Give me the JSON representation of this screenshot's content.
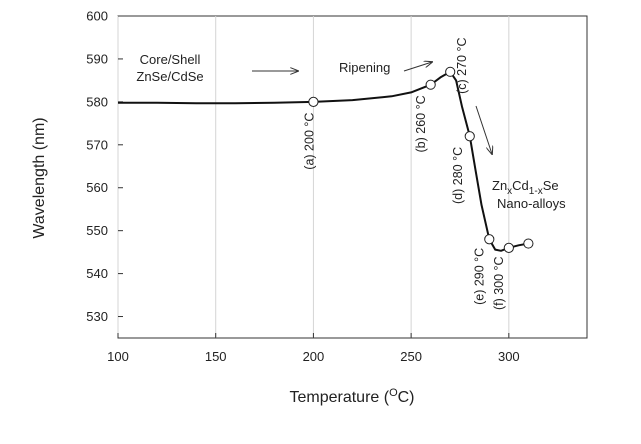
{
  "chart_data": {
    "type": "line",
    "title": "",
    "xlabel": {
      "main": "Temperature (",
      "sup": "O",
      "tail": "C)"
    },
    "ylabel": "Wavelength (nm)",
    "xlim": [
      100,
      340
    ],
    "ylim": [
      525,
      600
    ],
    "xticks": [
      100,
      150,
      200,
      250,
      300
    ],
    "yticks": [
      530,
      540,
      550,
      560,
      570,
      580,
      590,
      600
    ],
    "grid": false,
    "series": [
      {
        "curve": [
          [
            100,
            579.8
          ],
          [
            120,
            579.8
          ],
          [
            140,
            579.7
          ],
          [
            160,
            579.7
          ],
          [
            180,
            579.8
          ],
          [
            200,
            580.0
          ],
          [
            220,
            580.4
          ],
          [
            240,
            581.3
          ],
          [
            250,
            582.2
          ],
          [
            260,
            584.0
          ],
          [
            265,
            585.7
          ],
          [
            270,
            587.0
          ],
          [
            273,
            585.0
          ],
          [
            276,
            579.0
          ],
          [
            280,
            572.0
          ],
          [
            283,
            564.0
          ],
          [
            286,
            556.0
          ],
          [
            290,
            548.0
          ],
          [
            293,
            545.6
          ],
          [
            296,
            545.3
          ],
          [
            300,
            546.0
          ],
          [
            305,
            546.6
          ],
          [
            310,
            547.0
          ]
        ],
        "markers": [
          {
            "x": 200,
            "y": 580
          },
          {
            "x": 260,
            "y": 584
          },
          {
            "x": 270,
            "y": 587
          },
          {
            "x": 280,
            "y": 572
          },
          {
            "x": 290,
            "y": 548
          },
          {
            "x": 300,
            "y": 546
          },
          {
            "x": 310,
            "y": 547
          }
        ]
      }
    ],
    "point_labels": [
      {
        "text": "(a) 200 °C",
        "x": 200,
        "y": 577.5,
        "anchor": "end"
      },
      {
        "text": "(b) 260 °C",
        "x": 257,
        "y": 581.5,
        "anchor": "end"
      },
      {
        "text": "(c) 270 °C",
        "x": 278,
        "y": 595,
        "anchor": "end"
      },
      {
        "text": "(d) 280 °C",
        "x": 276,
        "y": 569.5,
        "anchor": "end"
      },
      {
        "text": "(e) 290 °C",
        "x": 287,
        "y": 546,
        "anchor": "end"
      },
      {
        "text": "(f) 300 °C",
        "x": 297,
        "y": 544,
        "anchor": "end"
      }
    ],
    "annotations": {
      "core_shell_line1": "Core/Shell",
      "core_shell_line2": "ZnSe/CdSe",
      "ripening": "Ripening",
      "alloy_formula": {
        "a": "Zn",
        "sub1": "x",
        "b": "Cd",
        "sub2": "1-x",
        "c": "Se"
      },
      "alloy_label": "Nano-alloys"
    }
  }
}
